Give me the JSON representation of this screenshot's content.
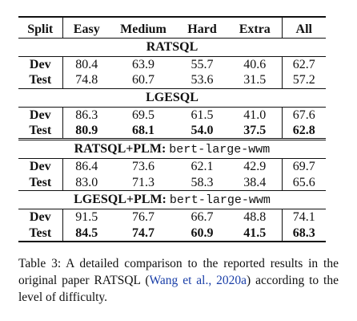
{
  "table": {
    "headers": [
      "Split",
      "Easy",
      "Medium",
      "Hard",
      "Extra",
      "All"
    ],
    "sections": [
      {
        "title": "RATSQL",
        "title_mono": "",
        "rows": [
          {
            "split": "Dev",
            "values": [
              "80.4",
              "63.9",
              "55.7",
              "40.6",
              "62.7"
            ],
            "bold": false
          },
          {
            "split": "Test",
            "values": [
              "74.8",
              "60.7",
              "53.6",
              "31.5",
              "57.2"
            ],
            "bold": false
          }
        ]
      },
      {
        "title": "LGESQL",
        "title_mono": "",
        "rows": [
          {
            "split": "Dev",
            "values": [
              "86.3",
              "69.5",
              "61.5",
              "41.0",
              "67.6"
            ],
            "bold": false
          },
          {
            "split": "Test",
            "values": [
              "80.9",
              "68.1",
              "54.0",
              "37.5",
              "62.8"
            ],
            "bold": true
          }
        ]
      },
      {
        "title": "RATSQL+PLM:",
        "title_mono": "bert-large-wwm",
        "rows": [
          {
            "split": "Dev",
            "values": [
              "86.4",
              "73.6",
              "62.1",
              "42.9",
              "69.7"
            ],
            "bold": false
          },
          {
            "split": "Test",
            "values": [
              "83.0",
              "71.3",
              "58.3",
              "38.4",
              "65.6"
            ],
            "bold": false
          }
        ]
      },
      {
        "title": "LGESQL+PLM:",
        "title_mono": "bert-large-wwm",
        "rows": [
          {
            "split": "Dev",
            "values": [
              "91.5",
              "76.7",
              "66.7",
              "48.8",
              "74.1"
            ],
            "bold": false
          },
          {
            "split": "Test",
            "values": [
              "84.5",
              "74.7",
              "60.9",
              "41.5",
              "68.3"
            ],
            "bold": true
          }
        ]
      }
    ]
  },
  "caption": {
    "before": "Table 3: A detailed comparison to the reported results in the original paper RATSQL (",
    "citation": "Wang et al., 2020a",
    "after": ") according to the level of difficulty."
  }
}
